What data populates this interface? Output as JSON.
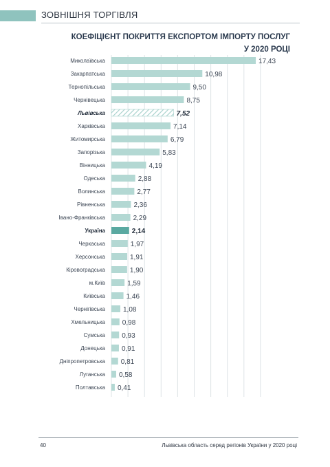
{
  "header": {
    "section_title": "ЗОВНІШНЯ ТОРГІВЛЯ"
  },
  "chart_data": {
    "type": "bar",
    "orientation": "horizontal",
    "title_line1": "КОЕФІЦІЄНТ ПОКРИТТЯ ЕКСПОРТОМ ІМПОРТУ ПОСЛУГ",
    "title_line2": "У 2020 РОЦІ",
    "xlim": [
      0,
      18
    ],
    "grid": true,
    "categories": [
      "Миколаївська",
      "Закарпатська",
      "Тернопільська",
      "Чернівецька",
      "Львівська",
      "Харківська",
      "Житомирська",
      "Запорізька",
      "Вінницька",
      "Одеська",
      "Волинська",
      "Рівненська",
      "Івано-Франківська",
      "Україна",
      "Черкаська",
      "Херсонська",
      "Кіровоградська",
      "м.Київ",
      "Київська",
      "Чернігівська",
      "Хмельницька",
      "Сумська",
      "Донецька",
      "Дніпропетровська",
      "Луганська",
      "Полтавська"
    ],
    "values": [
      17.43,
      10.98,
      9.5,
      8.75,
      7.52,
      7.14,
      6.79,
      5.83,
      4.19,
      2.88,
      2.77,
      2.36,
      2.29,
      2.14,
      1.97,
      1.91,
      1.9,
      1.59,
      1.46,
      1.08,
      0.98,
      0.93,
      0.91,
      0.81,
      0.58,
      0.41
    ],
    "value_labels": [
      "17,43",
      "10,98",
      "9,50",
      "8,75",
      "7,52",
      "7,14",
      "6,79",
      "5,83",
      "4,19",
      "2,88",
      "2,77",
      "2,36",
      "2,29",
      "2,14",
      "1,97",
      "1,91",
      "1,90",
      "1,59",
      "1,46",
      "1,08",
      "0,98",
      "0,93",
      "0,91",
      "0,81",
      "0,58",
      "0,41"
    ],
    "highlight_hatched": "Львівська",
    "highlight_dark": "Україна",
    "colors": {
      "bar": "#b3d8d3",
      "bar_dark": "#5aa9a1",
      "hatch": "#a9d2cd",
      "grid": "#dde3e6",
      "label": "#3c4654",
      "value": "#3c4654"
    }
  },
  "footer": {
    "page_number": "40",
    "text": "Львівська область серед регіонів України у 2020 році"
  }
}
